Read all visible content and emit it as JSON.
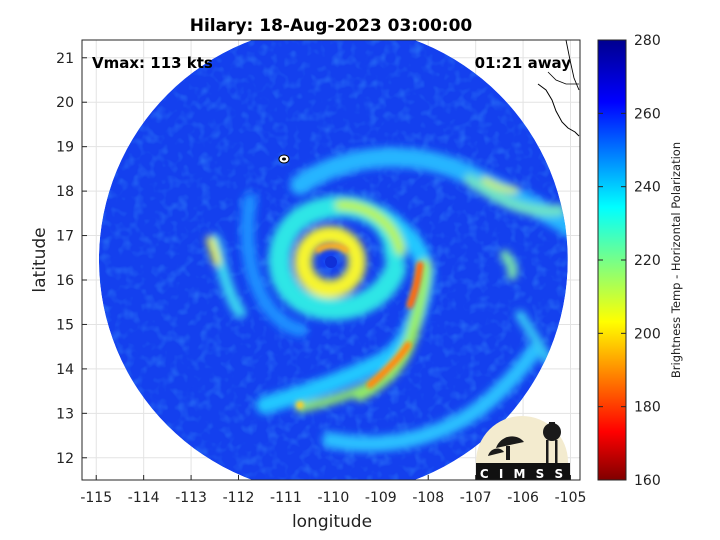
{
  "title": "Hilary: 18-Aug-2023 03:00:00",
  "annotations": {
    "vmax": "Vmax: 113 kts",
    "away": "01:21 away"
  },
  "logo": {
    "text": "C I M S S"
  },
  "chart_data": {
    "type": "heatmap",
    "title": "Hilary: 18-Aug-2023 03:00:00",
    "xlabel": "longitude",
    "ylabel": "latitude",
    "xlim": [
      -115.3,
      -104.8
    ],
    "ylim": [
      11.5,
      21.4
    ],
    "xticks": [
      -115,
      -114,
      -113,
      -112,
      -111,
      -110,
      -109,
      -108,
      -107,
      -106,
      -105
    ],
    "yticks": [
      12,
      13,
      14,
      15,
      16,
      17,
      18,
      19,
      20,
      21
    ],
    "grid": true,
    "colorbar": {
      "label": "Brightness Temp - Horizontal Polarization",
      "min": 160,
      "max": 280,
      "ticks": [
        160,
        180,
        200,
        220,
        240,
        260,
        280
      ],
      "colormap": "jet"
    },
    "storm_center": {
      "lon": -110.0,
      "lat": 16.5
    },
    "swath": {
      "center_lon": -110.0,
      "center_lat": 16.45,
      "radius_lon": 5.2,
      "radius_lat": 5.0
    }
  }
}
